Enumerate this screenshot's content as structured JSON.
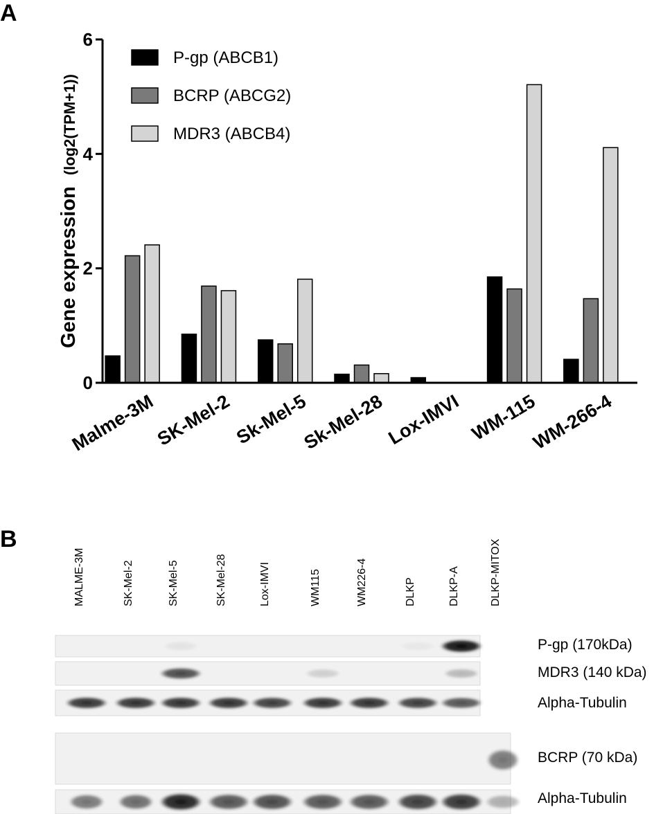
{
  "panel_labels": [
    "A",
    "B"
  ],
  "chart_data": {
    "type": "bar",
    "title": "",
    "xlabel": "",
    "ylabel": "Gene expression",
    "ylabel_unit": "(log2(TPM+1))",
    "ylim": [
      0,
      6
    ],
    "yticks": [
      0,
      2,
      4,
      6
    ],
    "grid": false,
    "legend_position": "top-left",
    "categories": [
      "Malme-3M",
      "SK-Mel-2",
      "Sk-Mel-5",
      "Sk-Mel-28",
      "Lox-IMVI",
      "WM-115",
      "WM-266-4"
    ],
    "series": [
      {
        "name": "P-gp (ABCB1)",
        "color": "#000000",
        "values": [
          0.47,
          0.85,
          0.75,
          0.15,
          0.09,
          1.85,
          0.41
        ]
      },
      {
        "name": "BCRP (ABCG2)",
        "color": "#7a7a7a",
        "values": [
          2.22,
          1.69,
          0.68,
          0.31,
          0.0,
          1.64,
          1.47
        ]
      },
      {
        "name": "MDR3 (ABCB4)",
        "color": "#d4d4d4",
        "values": [
          2.41,
          1.61,
          1.81,
          0.16,
          0.0,
          5.21,
          4.11
        ]
      }
    ]
  },
  "blot": {
    "lanes": [
      "MALME-3M",
      "SK-Mel-2",
      "SK-Mel-5",
      "SK-Mel-28",
      "Lox-IMVI",
      "WM115",
      "WM226-4",
      "DLKP",
      "DLKP-A",
      "DLKP-MITOX"
    ],
    "strips": [
      {
        "label": "P-gp    (170kDa)",
        "intensity": [
          0.0,
          0.0,
          0.06,
          0.0,
          0.0,
          0.0,
          0.0,
          0.04,
          1.0
        ]
      },
      {
        "label": "MDR3 (140 kDa)",
        "intensity": [
          0.0,
          0.0,
          0.75,
          0.0,
          0.0,
          0.15,
          0.0,
          0.0,
          0.25
        ]
      },
      {
        "label": "Alpha-Tubulin",
        "intensity": [
          0.85,
          0.85,
          0.85,
          0.85,
          0.8,
          0.85,
          0.85,
          0.8,
          0.7
        ]
      },
      {
        "label": "BCRP  (70 kDa)",
        "intensity": [
          0.0,
          0.0,
          0.0,
          0.0,
          0.0,
          0.0,
          0.0,
          0.0,
          0.0,
          0.55
        ]
      },
      {
        "label": "Alpha-Tubulin",
        "intensity": [
          0.55,
          0.6,
          0.95,
          0.7,
          0.75,
          0.7,
          0.7,
          0.8,
          0.85,
          0.3
        ]
      }
    ]
  }
}
